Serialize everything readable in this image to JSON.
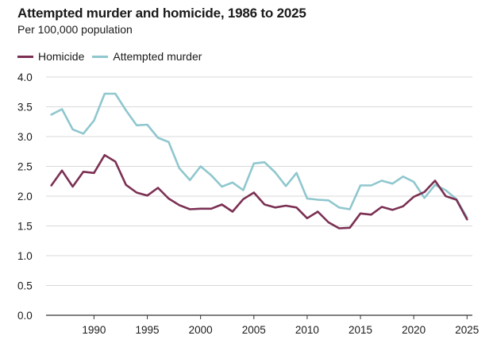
{
  "chart_data": {
    "type": "line",
    "title": "Attempted murder and homicide, 1986 to 2025",
    "subtitle": "Per 100,000 population",
    "xlabel": "",
    "ylabel": "",
    "x": [
      1986,
      1987,
      1988,
      1989,
      1990,
      1991,
      1992,
      1993,
      1994,
      1995,
      1996,
      1997,
      1998,
      1999,
      2000,
      2001,
      2002,
      2003,
      2004,
      2005,
      2006,
      2007,
      2008,
      2009,
      2010,
      2011,
      2012,
      2013,
      2014,
      2015,
      2016,
      2017,
      2018,
      2019,
      2020,
      2021,
      2022,
      2023,
      2024,
      2025
    ],
    "xlim": [
      1985.5,
      2025.5
    ],
    "ylim": [
      0,
      4
    ],
    "x_ticks": [
      1990,
      1995,
      2000,
      2005,
      2010,
      2015,
      2020,
      2025
    ],
    "y_ticks": [
      "0.0",
      "0.5",
      "1.0",
      "1.5",
      "2.0",
      "2.5",
      "3.0",
      "3.5",
      "4.0"
    ],
    "grid": "horizontal",
    "legend_position": "top-left",
    "series": [
      {
        "name": "Homicide",
        "color": "#7b3053",
        "values": [
          2.18,
          2.43,
          2.16,
          2.41,
          2.39,
          2.69,
          2.58,
          2.19,
          2.06,
          2.01,
          2.14,
          1.96,
          1.85,
          1.78,
          1.79,
          1.79,
          1.86,
          1.74,
          1.95,
          2.06,
          1.86,
          1.81,
          1.84,
          1.81,
          1.63,
          1.74,
          1.56,
          1.46,
          1.47,
          1.71,
          1.69,
          1.82,
          1.77,
          1.83,
          1.99,
          2.07,
          2.26,
          2.0,
          1.94,
          1.61
        ]
      },
      {
        "name": "Attempted murder",
        "color": "#8fc7ce",
        "values": [
          3.37,
          3.46,
          3.12,
          3.05,
          3.27,
          3.72,
          3.72,
          3.44,
          3.19,
          3.2,
          2.98,
          2.91,
          2.47,
          2.27,
          2.5,
          2.35,
          2.16,
          2.23,
          2.1,
          2.55,
          2.57,
          2.4,
          2.17,
          2.39,
          1.96,
          1.94,
          1.93,
          1.81,
          1.78,
          2.18,
          2.18,
          2.26,
          2.21,
          2.33,
          2.24,
          1.97,
          2.19,
          2.1,
          1.95,
          1.64
        ]
      }
    ]
  }
}
